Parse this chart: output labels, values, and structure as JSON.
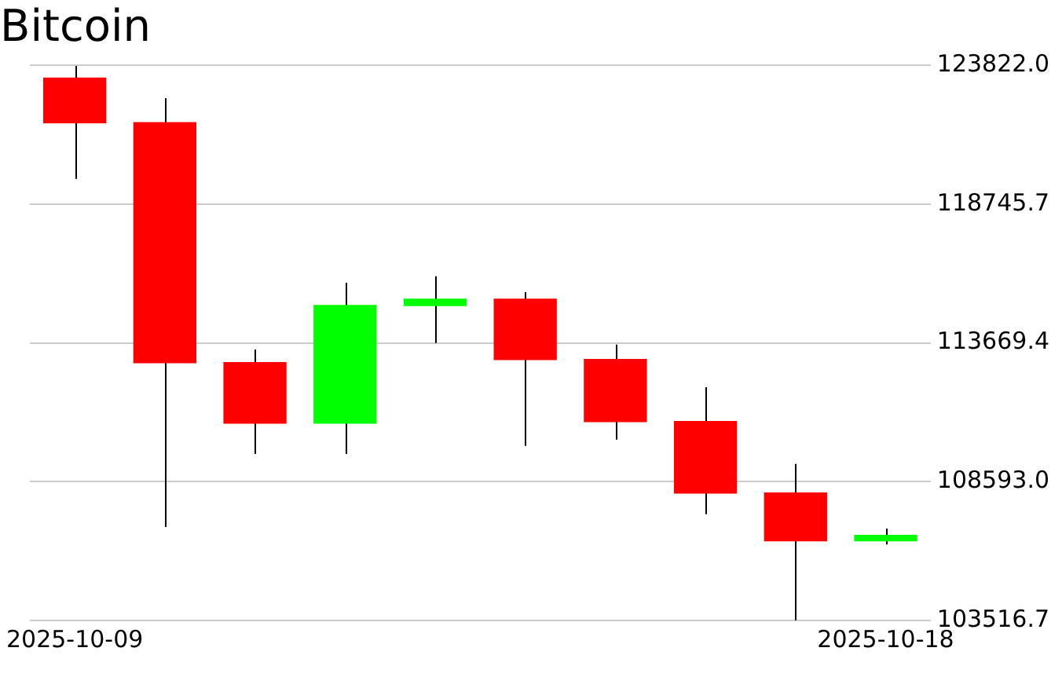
{
  "chart_data": {
    "type": "candlestick",
    "title": "Bitcoin",
    "categories": [
      "2025-10-09",
      null,
      null,
      null,
      null,
      null,
      null,
      null,
      null,
      "2025-10-18"
    ],
    "ohlc": [
      [
        123374,
        123800,
        119670,
        121705
      ],
      [
        121746,
        122618,
        106935,
        112925
      ],
      [
        112965,
        113430,
        109610,
        110715
      ],
      [
        110715,
        115873,
        109610,
        115059
      ],
      [
        115018,
        116105,
        113663,
        115290
      ],
      [
        115290,
        115524,
        109900,
        113040
      ],
      [
        113081,
        113605,
        110134,
        110773
      ],
      [
        110814,
        112052,
        107400,
        108156
      ],
      [
        108197,
        109244,
        103527,
        106412
      ],
      [
        106412,
        106877,
        106296,
        106645
      ]
    ],
    "colors": [
      "#ff0000",
      "#ff0000",
      "#ff0000",
      "#00ff00",
      "#00ff00",
      "#ff0000",
      "#ff0000",
      "#ff0000",
      "#ff0000",
      "#00ff00"
    ],
    "ylim": [
      103516.7,
      123822
    ],
    "yticks": [
      {
        "value": 103516.7,
        "label": "103516.7"
      },
      {
        "value": 108593,
        "label": "108593.0"
      },
      {
        "value": 113669.4,
        "label": "113669.4"
      },
      {
        "value": 118745.7,
        "label": "118745.7"
      },
      {
        "value": 123822,
        "label": "123822.0"
      }
    ],
    "grid": "y",
    "legend": false
  }
}
